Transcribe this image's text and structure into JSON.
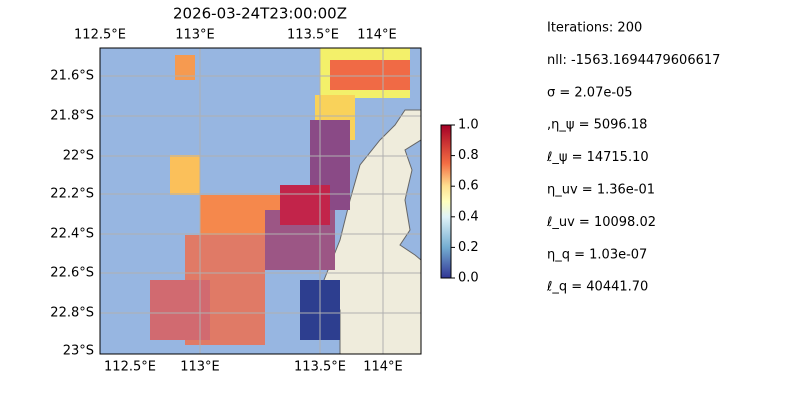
{
  "map": {
    "title": "2026-03-24T23:00:00Z",
    "x_labels": [
      "112.5°E",
      "113°E",
      "113.5°E",
      "114°E"
    ],
    "y_labels": [
      "21.6°S",
      "21.8°S",
      "22°S",
      "22.2°S",
      "22.4°S",
      "22.6°S",
      "22.8°S",
      "23°S"
    ]
  },
  "colorbar": {
    "ticks": [
      "0.0",
      "0.2",
      "0.4",
      "0.6",
      "0.8",
      "1.0"
    ]
  },
  "info": [
    "Iterations: 200",
    "nll: -1563.1694479606617",
    "σ = 2.07e-05",
    ",η_ψ = 5096.18",
    "ℓ_ψ = 14715.10",
    "η_uv = 1.36e-01",
    "ℓ_uv = 10098.02",
    "η_q = 1.03e-07",
    "ℓ_q = 40441.70"
  ]
}
